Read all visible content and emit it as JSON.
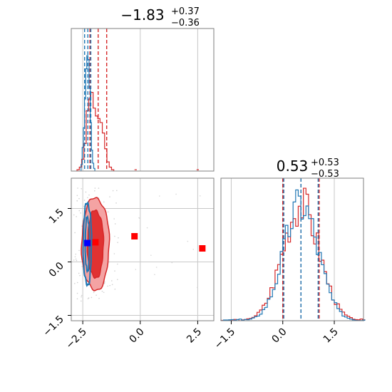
{
  "colors": {
    "red": "#d62728",
    "blue": "#1f77b4",
    "red_fill_light": "#f4a3a3",
    "red_fill_dark": "#e03232",
    "grid": "#c8c8c8",
    "frame": "#7f7f7f",
    "marker_red": "#ff0000",
    "marker_blue": "#0000ff"
  },
  "titles": {
    "param1": {
      "value": "−1.83",
      "plus": "+0.37",
      "minus": "−0.36"
    },
    "param2": {
      "value": "0.53",
      "plus": "+0.53",
      "minus": "−0.53"
    }
  },
  "chart_data": [
    {
      "type": "histogram",
      "panel": "marginal-x1",
      "grid": true,
      "xlim": [
        -3.0,
        3.2
      ],
      "x_ticks": [
        -2.5,
        0.0,
        2.5
      ],
      "x_tick_labels": [
        "−2.5",
        "0.0",
        "2.5"
      ],
      "series": [
        {
          "color": "red",
          "bins": [
            -2.7,
            -2.6,
            -2.5,
            -2.4,
            -2.3,
            -2.2,
            -2.1,
            -2.0,
            -1.9,
            -1.8,
            -1.7,
            -1.6,
            -1.5,
            -1.4,
            -1.3,
            -1.2
          ],
          "heights": [
            0.01,
            0.03,
            0.09,
            0.21,
            0.46,
            0.55,
            0.6,
            0.48,
            0.42,
            0.4,
            0.37,
            0.29,
            0.17,
            0.07,
            0.03,
            0.01
          ],
          "quantile_lines": [
            -2.19,
            -1.83,
            -1.46
          ],
          "outlier_bins": [
            [
              -0.2,
              0.01
            ],
            [
              2.5,
              0.01
            ]
          ]
        },
        {
          "color": "blue",
          "bins": [
            -2.55,
            -2.5,
            -2.45,
            -2.4,
            -2.35,
            -2.3,
            -2.25,
            -2.2,
            -2.15,
            -2.1,
            -2.05,
            -2.0
          ],
          "heights": [
            0.05,
            0.18,
            0.33,
            0.55,
            0.78,
            0.88,
            0.85,
            0.63,
            0.37,
            0.16,
            0.06,
            0.02
          ],
          "quantile_lines": [
            -2.42,
            -2.28,
            -2.15
          ]
        }
      ]
    },
    {
      "type": "contour",
      "panel": "joint",
      "grid": true,
      "xlim": [
        -3.0,
        3.2
      ],
      "ylim": [
        -1.65,
        2.35
      ],
      "x_ticks": [
        -2.5,
        0.0,
        2.5
      ],
      "x_tick_labels": [
        "−2.5",
        "0.0",
        "2.5"
      ],
      "y_ticks": [
        -1.5,
        0.0,
        1.5
      ],
      "y_tick_labels": [
        "−1.5",
        "0.0",
        "1.5"
      ],
      "red_contour": {
        "center": [
          -1.95,
          0.5
        ],
        "radii_x": [
          0.6,
          0.35
        ],
        "radii_y": [
          1.3,
          0.95
        ]
      },
      "blue_contour": {
        "center": [
          -2.3,
          0.5
        ],
        "radii_x": [
          0.18,
          0.09
        ],
        "radii_y": [
          1.15,
          0.75
        ]
      },
      "markers": [
        {
          "color": "marker_red",
          "x": -0.25,
          "y": 0.72
        },
        {
          "color": "marker_red",
          "x": 2.7,
          "y": 0.38
        },
        {
          "color": "marker_red",
          "x": -1.95,
          "y": 0.55
        },
        {
          "color": "marker_blue",
          "x": -2.3,
          "y": 0.53
        }
      ]
    },
    {
      "type": "histogram",
      "panel": "marginal-x2",
      "grid": true,
      "xlim": [
        -1.8,
        2.35
      ],
      "x_ticks": [
        -1.5,
        0.0,
        1.5
      ],
      "x_tick_labels": [
        "−1.5",
        "0.0",
        "1.5"
      ],
      "series": [
        {
          "color": "red",
          "center": 0.53,
          "sigma": 0.53,
          "quantile_lines": [
            0.0,
            0.53,
            1.06
          ]
        },
        {
          "color": "blue",
          "center": 0.53,
          "sigma": 0.5,
          "quantile_lines": [
            0.03,
            0.53,
            1.03
          ]
        }
      ]
    }
  ]
}
